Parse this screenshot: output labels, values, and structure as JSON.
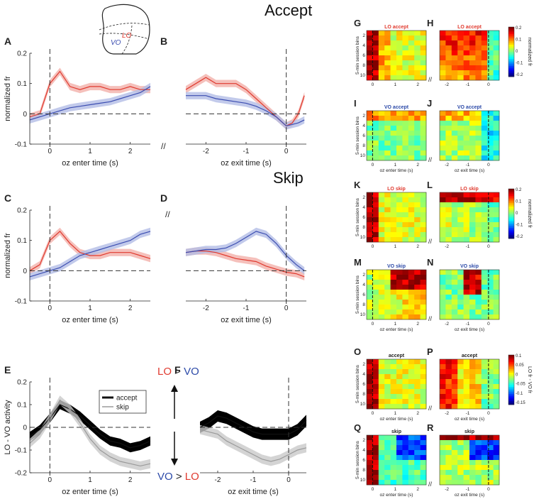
{
  "header_accept": "Accept",
  "header_skip": "Skip",
  "brain_label_lo": "LO",
  "brain_label_vo": "VO",
  "axis_break": "//",
  "chart_data": [
    {
      "id": "A",
      "type": "line",
      "letter": "A",
      "xlabel": "oz enter  time (s)",
      "ylabel": "normalized fr",
      "xlim": [
        -0.5,
        2.5
      ],
      "ylim": [
        -0.1,
        0.2
      ],
      "xticks": [
        0,
        1,
        2
      ],
      "xtick_labels": [
        "0",
        "1",
        "2"
      ],
      "yticks": [
        -0.1,
        0,
        0.1,
        0.2
      ],
      "ytick_labels": [
        "-0.1",
        "0",
        "0.1",
        "0.2"
      ],
      "vline": 0,
      "hline": 0,
      "series": [
        {
          "name": "LO",
          "color": "#e03a2f",
          "band": "#f2b0aa",
          "x": [
            -0.5,
            -0.25,
            0,
            0.25,
            0.5,
            0.75,
            1,
            1.25,
            1.5,
            1.75,
            2,
            2.25,
            2.5
          ],
          "y": [
            -0.01,
            0.0,
            0.1,
            0.14,
            0.09,
            0.08,
            0.09,
            0.09,
            0.08,
            0.08,
            0.09,
            0.08,
            0.08
          ],
          "err": 0.012
        },
        {
          "name": "VO",
          "color": "#3b4db0",
          "band": "#b3bde6",
          "x": [
            -0.5,
            -0.25,
            0,
            0.25,
            0.5,
            0.75,
            1,
            1.25,
            1.5,
            1.75,
            2,
            2.25,
            2.5
          ],
          "y": [
            -0.02,
            -0.01,
            0.0,
            0.01,
            0.02,
            0.025,
            0.03,
            0.035,
            0.04,
            0.05,
            0.06,
            0.07,
            0.09
          ],
          "err": 0.012
        }
      ]
    },
    {
      "id": "B",
      "type": "line",
      "letter": "B",
      "xlabel": "oz exit  time (s)",
      "ylabel": "",
      "xlim": [
        -2.5,
        0.5
      ],
      "ylim": [
        -0.1,
        0.2
      ],
      "xticks": [
        -2,
        -1,
        0
      ],
      "xtick_labels": [
        "-2",
        "-1",
        "0"
      ],
      "yticks": [],
      "ytick_labels": [],
      "vline": 0,
      "hline": 0,
      "series": [
        {
          "name": "LO",
          "color": "#e03a2f",
          "band": "#f2b0aa",
          "x": [
            -2.5,
            -2.25,
            -2,
            -1.75,
            -1.5,
            -1.25,
            -1,
            -0.75,
            -0.5,
            -0.25,
            0,
            0.15,
            0.3,
            0.45
          ],
          "y": [
            0.08,
            0.1,
            0.12,
            0.1,
            0.1,
            0.1,
            0.08,
            0.05,
            0.02,
            -0.01,
            -0.04,
            -0.03,
            0.0,
            0.06
          ],
          "err": 0.012
        },
        {
          "name": "VO",
          "color": "#3b4db0",
          "band": "#b3bde6",
          "x": [
            -2.5,
            -2.25,
            -2,
            -1.75,
            -1.5,
            -1.25,
            -1,
            -0.75,
            -0.5,
            -0.25,
            0,
            0.15,
            0.3,
            0.45
          ],
          "y": [
            0.06,
            0.06,
            0.06,
            0.05,
            0.045,
            0.04,
            0.035,
            0.025,
            0.01,
            -0.01,
            -0.04,
            -0.035,
            -0.03,
            -0.02
          ],
          "err": 0.012
        }
      ]
    },
    {
      "id": "C",
      "type": "line",
      "letter": "C",
      "xlabel": "oz enter  time (s)",
      "ylabel": "normalized fr",
      "xlim": [
        -0.5,
        2.5
      ],
      "ylim": [
        -0.1,
        0.2
      ],
      "xticks": [
        0,
        1,
        2
      ],
      "xtick_labels": [
        "0",
        "1",
        "2"
      ],
      "yticks": [
        -0.1,
        0,
        0.1,
        0.2
      ],
      "ytick_labels": [
        "-0.1",
        "0",
        "0.1",
        "0.2"
      ],
      "vline": 0,
      "hline": 0,
      "series": [
        {
          "name": "LO",
          "color": "#e03a2f",
          "band": "#f2b0aa",
          "x": [
            -0.5,
            -0.25,
            0,
            0.25,
            0.5,
            0.75,
            1,
            1.25,
            1.5,
            1.75,
            2,
            2.25,
            2.5
          ],
          "y": [
            0.0,
            0.02,
            0.1,
            0.13,
            0.09,
            0.06,
            0.05,
            0.05,
            0.06,
            0.06,
            0.06,
            0.05,
            0.04
          ],
          "err": 0.012
        },
        {
          "name": "VO",
          "color": "#3b4db0",
          "band": "#b3bde6",
          "x": [
            -0.5,
            -0.25,
            0,
            0.25,
            0.5,
            0.75,
            1,
            1.25,
            1.5,
            1.75,
            2,
            2.25,
            2.5
          ],
          "y": [
            -0.02,
            -0.01,
            0.0,
            0.01,
            0.03,
            0.05,
            0.06,
            0.07,
            0.08,
            0.09,
            0.1,
            0.12,
            0.13
          ],
          "err": 0.012
        }
      ]
    },
    {
      "id": "D",
      "type": "line",
      "letter": "D",
      "xlabel": "oz exit  time (s)",
      "ylabel": "",
      "xlim": [
        -2.5,
        0.5
      ],
      "ylim": [
        -0.1,
        0.2
      ],
      "xticks": [
        -2,
        -1,
        0
      ],
      "xtick_labels": [
        "-2",
        "-1",
        "0"
      ],
      "yticks": [],
      "ytick_labels": [],
      "vline": 0,
      "hline": 0,
      "series": [
        {
          "name": "LO",
          "color": "#e03a2f",
          "band": "#f2b0aa",
          "x": [
            -2.5,
            -2.25,
            -2,
            -1.75,
            -1.5,
            -1.25,
            -1,
            -0.75,
            -0.5,
            -0.25,
            0,
            0.25,
            0.45
          ],
          "y": [
            0.06,
            0.065,
            0.065,
            0.06,
            0.05,
            0.04,
            0.035,
            0.03,
            0.015,
            0.005,
            -0.005,
            -0.01,
            -0.02
          ],
          "err": 0.012
        },
        {
          "name": "VO",
          "color": "#3b4db0",
          "band": "#b3bde6",
          "x": [
            -2.5,
            -2.25,
            -2,
            -1.75,
            -1.5,
            -1.25,
            -1,
            -0.75,
            -0.5,
            -0.25,
            0,
            0.25,
            0.45
          ],
          "y": [
            0.06,
            0.065,
            0.07,
            0.07,
            0.075,
            0.09,
            0.11,
            0.13,
            0.12,
            0.09,
            0.05,
            0.02,
            0.0
          ],
          "err": 0.012
        }
      ]
    },
    {
      "id": "E",
      "type": "line",
      "letter": "E",
      "xlabel": "oz enter  time (s)",
      "ylabel": "LO - VO activity",
      "xlim": [
        -0.5,
        2.5
      ],
      "ylim": [
        -0.2,
        0.2
      ],
      "xticks": [
        0,
        1,
        2
      ],
      "xtick_labels": [
        "0",
        "1",
        "2"
      ],
      "yticks": [
        -0.2,
        -0.1,
        0,
        0.1,
        0.2
      ],
      "ytick_labels": [
        "-0.2",
        "-0.1",
        "0",
        "0.1",
        "0.2"
      ],
      "vline": 0,
      "hline": 0,
      "legend": [
        "accept",
        "skip"
      ],
      "series": [
        {
          "name": "accept",
          "color": "#111111",
          "band": "#000000",
          "x": [
            -0.5,
            -0.25,
            0,
            0.25,
            0.5,
            0.75,
            1,
            1.25,
            1.5,
            1.75,
            2,
            2.25,
            2.5
          ],
          "y": [
            -0.04,
            -0.01,
            0.04,
            0.1,
            0.08,
            0.05,
            0.01,
            -0.03,
            -0.06,
            -0.07,
            -0.09,
            -0.08,
            -0.06
          ],
          "err": 0.02
        },
        {
          "name": "skip",
          "color": "#9a9a9a",
          "band": "#c9c9c9",
          "x": [
            -0.5,
            -0.25,
            0,
            0.25,
            0.5,
            0.75,
            1,
            1.25,
            1.5,
            1.75,
            2,
            2.25,
            2.5
          ],
          "y": [
            -0.07,
            -0.03,
            0.04,
            0.12,
            0.08,
            0.02,
            -0.05,
            -0.1,
            -0.13,
            -0.15,
            -0.16,
            -0.17,
            -0.16
          ],
          "err": 0.02
        }
      ]
    },
    {
      "id": "F",
      "type": "line",
      "letter": "F",
      "xlabel": "oz exit  time (s)",
      "ylabel": "",
      "xlim": [
        -2.5,
        0.5
      ],
      "ylim": [
        -0.2,
        0.2
      ],
      "xticks": [
        -2,
        -1,
        0
      ],
      "xtick_labels": [
        "-2",
        "-1",
        "0"
      ],
      "yticks": [],
      "ytick_labels": [],
      "vline": 0,
      "hline": 0,
      "series": [
        {
          "name": "accept",
          "color": "#111111",
          "band": "#000000",
          "x": [
            -2.5,
            -2.25,
            -2,
            -1.75,
            -1.5,
            -1.25,
            -1,
            -0.75,
            -0.5,
            -0.25,
            0,
            0.25,
            0.5
          ],
          "y": [
            0.0,
            0.02,
            0.05,
            0.04,
            0.02,
            0.0,
            -0.02,
            -0.03,
            -0.03,
            -0.03,
            -0.03,
            -0.01,
            0.03
          ],
          "err": 0.025
        },
        {
          "name": "skip",
          "color": "#9a9a9a",
          "band": "#c9c9c9",
          "x": [
            -2.5,
            -2.25,
            -2,
            -1.75,
            -1.5,
            -1.25,
            -1,
            -0.75,
            -0.5,
            -0.25,
            0,
            0.25,
            0.5
          ],
          "y": [
            -0.01,
            -0.02,
            -0.03,
            -0.06,
            -0.08,
            -0.1,
            -0.12,
            -0.14,
            -0.15,
            -0.14,
            -0.12,
            -0.1,
            -0.09
          ],
          "err": 0.02
        }
      ]
    }
  ],
  "comparison_annotation": {
    "top": [
      "LO",
      " > ",
      "VO"
    ],
    "bottom": [
      "VO",
      " > ",
      "LO"
    ],
    "colors": {
      "LO": "#e03a2f",
      "VO": "#2c4aa8",
      "gt": "#222222"
    }
  },
  "heatmaps": [
    {
      "letter": "G",
      "title": "LO accept",
      "title_color": "#e03a2f",
      "kind": "enter",
      "ylabel": "5-min session bins",
      "xtick_labels": [
        "0",
        "1",
        "2"
      ],
      "ytick_labels": [
        "2",
        "4",
        "6",
        "8",
        "10"
      ],
      "pattern": "lo_accept_enter",
      "seed": 3
    },
    {
      "letter": "H",
      "title": "LO accept",
      "title_color": "#e03a2f",
      "kind": "exit",
      "ylabel": "",
      "xtick_labels": [
        "-2",
        "-1",
        "0"
      ],
      "ytick_labels": [],
      "pattern": "lo_accept_exit",
      "seed": 7
    },
    {
      "letter": "I",
      "title": "VO accept",
      "title_color": "#2c4aa8",
      "kind": "enter",
      "ylabel": "5-min session bins",
      "xlabel": "oz enter time (s)",
      "xtick_labels": [
        "0",
        "1",
        "2"
      ],
      "ytick_labels": [
        "2",
        "4",
        "6",
        "8",
        "10"
      ],
      "pattern": "vo_accept_enter",
      "seed": 11
    },
    {
      "letter": "J",
      "title": "VO accept",
      "title_color": "#2c4aa8",
      "kind": "exit",
      "ylabel": "",
      "xlabel": "oz exit time (s)",
      "xtick_labels": [
        "-2",
        "-1",
        "0"
      ],
      "ytick_labels": [],
      "pattern": "vo_accept_exit",
      "seed": 13
    },
    {
      "letter": "K",
      "title": "LO skip",
      "title_color": "#e03a2f",
      "kind": "enter",
      "ylabel": "5-min session bins",
      "xtick_labels": [
        "0",
        "1",
        "2"
      ],
      "ytick_labels": [
        "2",
        "4",
        "6",
        "8",
        "10"
      ],
      "pattern": "lo_skip_enter",
      "seed": 17
    },
    {
      "letter": "L",
      "title": "LO skip",
      "title_color": "#e03a2f",
      "kind": "exit",
      "ylabel": "",
      "xtick_labels": [
        "-2",
        "-1",
        "0"
      ],
      "ytick_labels": [],
      "pattern": "lo_skip_exit",
      "seed": 19
    },
    {
      "letter": "M",
      "title": "VO skip",
      "title_color": "#2c4aa8",
      "kind": "enter",
      "ylabel": "5-min session bins",
      "xlabel": "oz enter time (s)",
      "xtick_labels": [
        "0",
        "1",
        "2"
      ],
      "ytick_labels": [
        "2",
        "4",
        "6",
        "8",
        "10"
      ],
      "pattern": "vo_skip_enter",
      "seed": 23
    },
    {
      "letter": "N",
      "title": "VO skip",
      "title_color": "#2c4aa8",
      "kind": "exit",
      "ylabel": "",
      "xlabel": "oz exit time (s)",
      "xtick_labels": [
        "-2",
        "-1",
        "0"
      ],
      "ytick_labels": [],
      "pattern": "vo_skip_exit",
      "seed": 29
    },
    {
      "letter": "O",
      "title": "accept",
      "title_color": "#222222",
      "kind": "enter",
      "ylabel": "5-min session bins",
      "xlabel": "oz enter time (s)",
      "xtick_labels": [
        "0",
        "1",
        "2"
      ],
      "ytick_labels": [
        "2",
        "4",
        "6",
        "8",
        "10"
      ],
      "pattern": "diff_accept_enter",
      "seed": 31
    },
    {
      "letter": "P",
      "title": "accept",
      "title_color": "#222222",
      "kind": "exit",
      "ylabel": "",
      "xlabel": "oz exit time (s)",
      "xtick_labels": [
        "-2",
        "-1",
        "0"
      ],
      "ytick_labels": [],
      "pattern": "diff_accept_exit",
      "seed": 37
    },
    {
      "letter": "Q",
      "title": "skip",
      "title_color": "#222222",
      "kind": "enter",
      "ylabel": "5-min session bins",
      "xlabel": "oz enter time (s)",
      "xtick_labels": [
        "0",
        "1",
        "2"
      ],
      "ytick_labels": [
        "2",
        "4",
        "6",
        "8",
        "10"
      ],
      "pattern": "diff_skip_enter",
      "seed": 41
    },
    {
      "letter": "R",
      "title": "skip",
      "title_color": "#222222",
      "kind": "exit",
      "ylabel": "",
      "xlabel": "oz exit time (s)",
      "xtick_labels": [
        "-2",
        "-1",
        "0"
      ],
      "ytick_labels": [],
      "pattern": "diff_skip_exit",
      "seed": 43
    }
  ],
  "colorbars": [
    {
      "id": "cb1",
      "label": "normalized fr",
      "tick_labels": [
        "0.2",
        "0.1",
        "0",
        "-0.1",
        "-0.2"
      ]
    },
    {
      "id": "cb2",
      "label": "normalized fr",
      "tick_labels": [
        "0.2",
        "0.1",
        "0",
        "-0.1",
        "-0.2"
      ]
    },
    {
      "id": "cb3",
      "label": "LO fr - VO fr",
      "tick_labels": [
        "0.1",
        "0.05",
        "0",
        "-0.05",
        "-0.1",
        "-0.15"
      ]
    }
  ]
}
